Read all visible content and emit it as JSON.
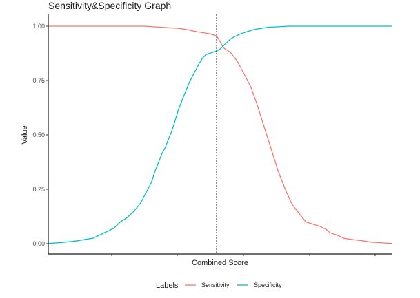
{
  "chart_data": {
    "type": "line",
    "title": "Sensitivity&Specificity Graph",
    "xlabel": "Combined Score",
    "ylabel": "Value",
    "xlim": [
      0,
      100
    ],
    "ylim": [
      0,
      1
    ],
    "x_tick_labels": [],
    "y_ticks": [
      0,
      0.25,
      0.5,
      0.75,
      1
    ],
    "y_tick_labels": [
      "0.00",
      "0.25",
      "0.50",
      "0.75",
      "1.00"
    ],
    "grid": false,
    "legend_position": "bottom",
    "legend_title": "Labels",
    "cutoff_x": 49,
    "series": [
      {
        "name": "Sensitivity",
        "color": "#F8766D",
        "x": [
          0,
          20,
          28,
          33,
          38,
          40,
          43,
          45,
          47,
          48,
          49,
          50,
          51,
          53,
          55,
          57,
          59,
          61,
          63,
          65,
          67,
          69,
          71,
          73,
          75,
          77,
          79,
          81,
          82,
          84,
          86,
          88,
          90,
          92,
          94,
          96,
          98,
          100
        ],
        "values": [
          1,
          1,
          1,
          0.995,
          0.99,
          0.985,
          0.975,
          0.97,
          0.965,
          0.96,
          0.955,
          0.93,
          0.9,
          0.88,
          0.84,
          0.78,
          0.72,
          0.63,
          0.53,
          0.43,
          0.33,
          0.25,
          0.18,
          0.14,
          0.1,
          0.09,
          0.08,
          0.065,
          0.05,
          0.04,
          0.025,
          0.02,
          0.016,
          0.012,
          0.007,
          0.005,
          0.003,
          0.001
        ]
      },
      {
        "name": "Specificity",
        "color": "#00BFC4",
        "x": [
          0,
          4,
          8,
          11,
          13,
          15,
          17,
          19,
          21,
          23,
          25,
          27,
          28,
          29,
          30,
          31,
          32,
          33,
          34,
          35,
          36,
          37,
          38,
          39,
          40,
          41,
          42,
          43,
          44,
          45,
          46,
          47,
          48,
          49,
          50,
          51,
          52,
          53,
          54,
          56,
          58,
          60,
          62,
          64,
          67,
          70,
          75,
          80,
          90,
          100
        ],
        "values": [
          0.001,
          0.005,
          0.012,
          0.02,
          0.025,
          0.04,
          0.055,
          0.07,
          0.1,
          0.12,
          0.15,
          0.19,
          0.22,
          0.25,
          0.28,
          0.33,
          0.37,
          0.41,
          0.44,
          0.48,
          0.52,
          0.57,
          0.62,
          0.66,
          0.7,
          0.74,
          0.77,
          0.8,
          0.83,
          0.855,
          0.87,
          0.875,
          0.88,
          0.885,
          0.895,
          0.91,
          0.925,
          0.94,
          0.95,
          0.965,
          0.975,
          0.985,
          0.99,
          0.995,
          0.997,
          1,
          1,
          1,
          1,
          1
        ]
      }
    ]
  }
}
